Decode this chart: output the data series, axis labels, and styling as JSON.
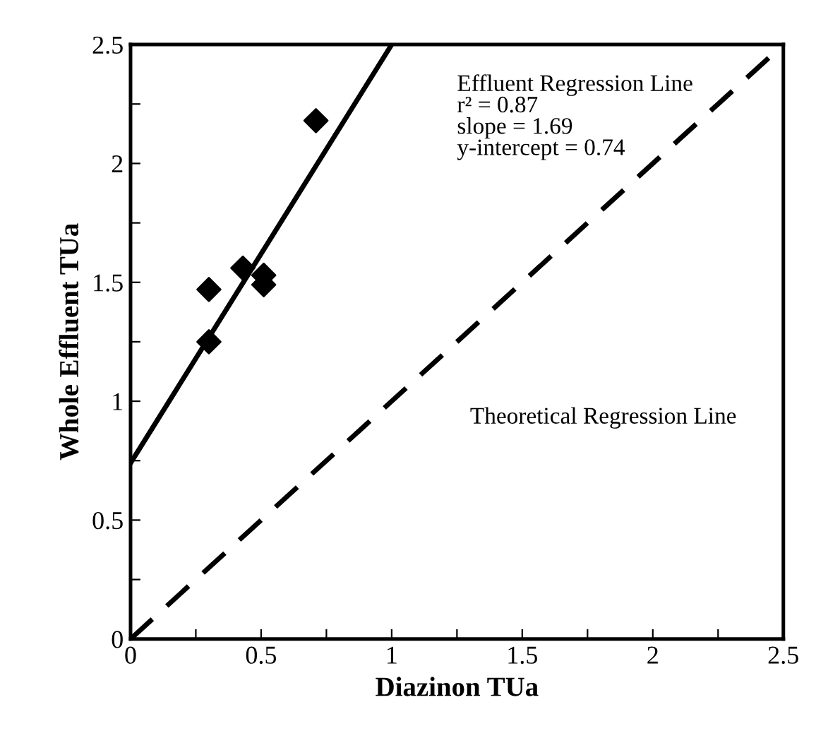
{
  "chart_data": {
    "type": "scatter",
    "xlabel": "Diazinon TUa",
    "ylabel": "Whole Effluent TUa",
    "series": [
      {
        "color": "#000000",
        "marker": "diamond",
        "x": [
          0.3,
          0.3,
          0.43,
          0.51,
          0.51,
          0.71
        ],
        "values": [
          1.47,
          1.25,
          1.56,
          1.53,
          1.49,
          2.18
        ]
      },
      {
        "type": "line",
        "color": "#000000",
        "line_style": "solid",
        "marker": "none",
        "x": [
          0,
          1.0
        ],
        "values": [
          0.74,
          2.5
        ]
      },
      {
        "type": "line",
        "color": "#000000",
        "line_style": "dashed",
        "marker": "none",
        "x": [
          0,
          2.5
        ],
        "values": [
          0,
          2.5
        ]
      }
    ],
    "annotations": [
      "Effluent Regression Line\nr² = 0.87\nslope = 1.69\ny-intercept = 0.74",
      "Theoretical Regression Line"
    ],
    "xlim": [
      0,
      2.5
    ],
    "ylim": [
      0,
      2.5
    ],
    "xticks": [
      0,
      {
        "value": 0.25,
        "label": null
      },
      0.5,
      {
        "value": 0.75,
        "label": null
      },
      1,
      {
        "value": 1.25,
        "label": null
      },
      1.5,
      {
        "value": 1.75,
        "label": null
      },
      2,
      {
        "value": 2.25,
        "label": null
      },
      2.5
    ],
    "yticks": [
      0,
      {
        "value": 0.25,
        "label": null
      },
      0.5,
      {
        "value": 0.75,
        "label": null
      },
      1,
      {
        "value": 1.25,
        "label": null
      },
      1.5,
      {
        "value": 1.75,
        "label": null
      },
      2,
      {
        "value": 2.25,
        "label": null
      },
      2.5
    ],
    "grid": false,
    "legend": false
  }
}
